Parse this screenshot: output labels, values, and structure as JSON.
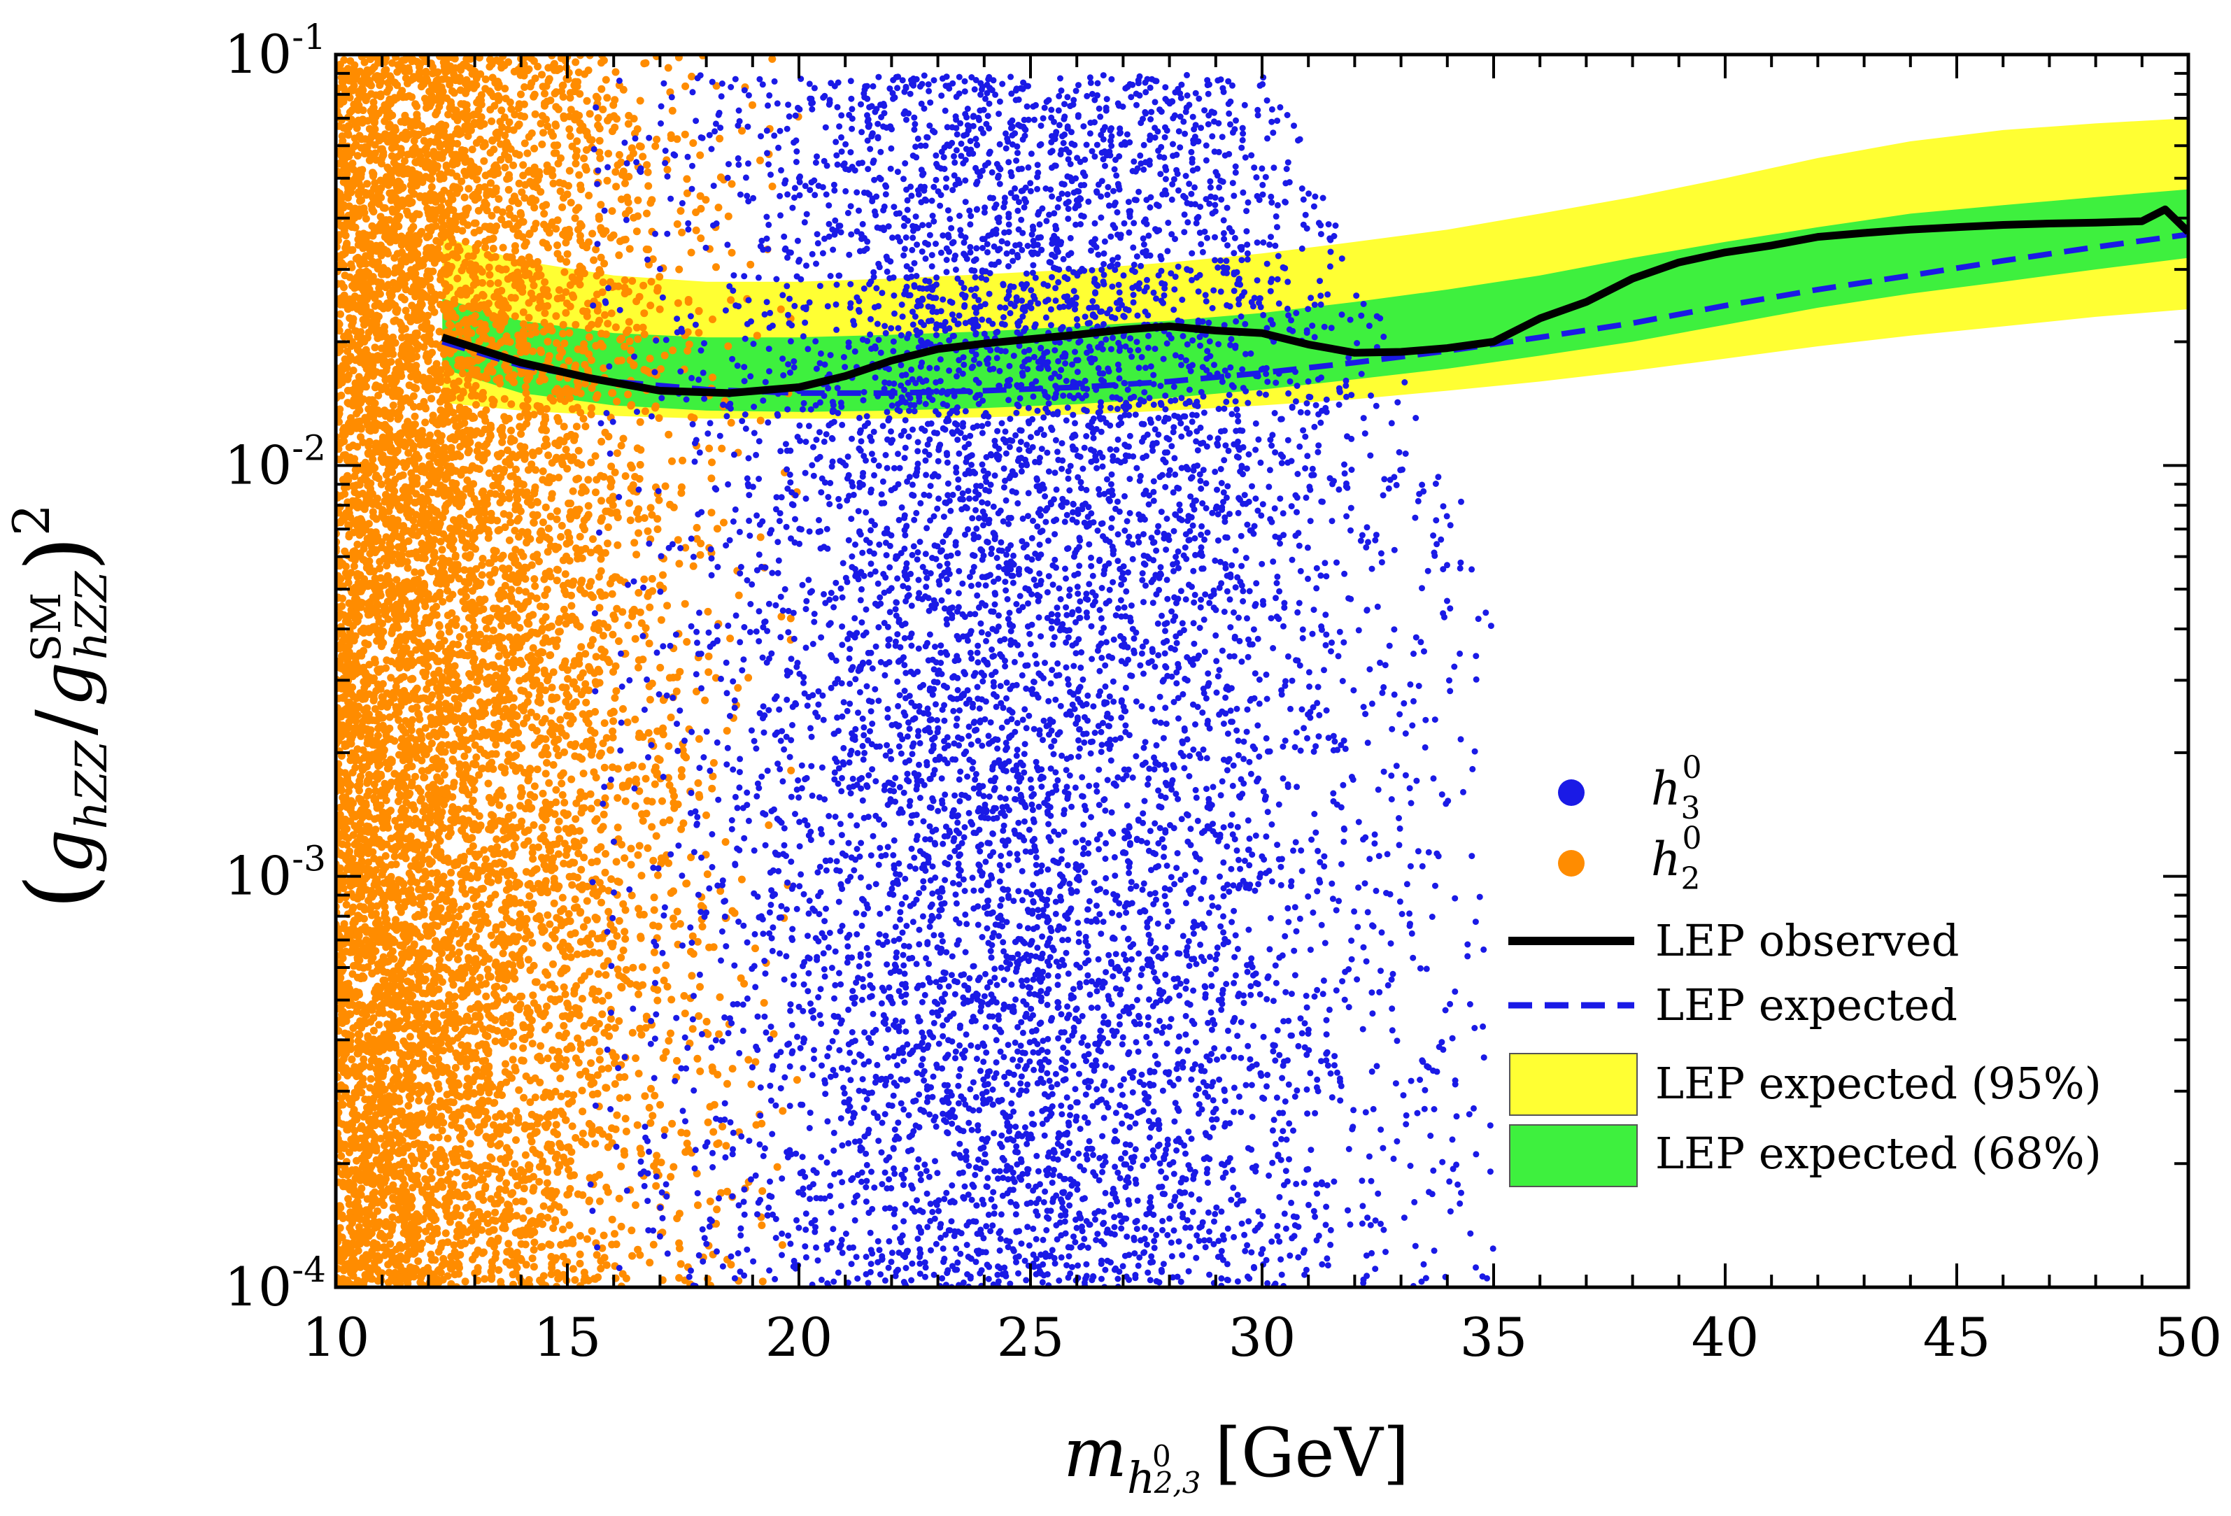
{
  "chart_data": {
    "type": "scatter",
    "title": "",
    "xlabel": {
      "main": "m",
      "sub": "h",
      "subsup": "0",
      "subsub": "2,3",
      "unit": "[GeV]"
    },
    "ylabel": {
      "full": "(g_hZZ / g_hZZ^SM)^2",
      "g": "g",
      "sub": "hZZ",
      "sup": "SM",
      "power": "2",
      "slash": "/"
    },
    "x_range": [
      10,
      50
    ],
    "y_range": [
      0.0001,
      0.1
    ],
    "y_scale": "log",
    "x_ticks": [
      {
        "value": 10,
        "label": "10"
      },
      {
        "value": 15,
        "label": "15"
      },
      {
        "value": 20,
        "label": "20"
      },
      {
        "value": 25,
        "label": "25"
      },
      {
        "value": 30,
        "label": "30"
      },
      {
        "value": 35,
        "label": "35"
      },
      {
        "value": 40,
        "label": "40"
      },
      {
        "value": 45,
        "label": "45"
      },
      {
        "value": 50,
        "label": "50"
      }
    ],
    "y_ticks": [
      {
        "value": 0.0001,
        "base": "10",
        "exp": "-4"
      },
      {
        "value": 0.001,
        "base": "10",
        "exp": "-3"
      },
      {
        "value": 0.01,
        "base": "10",
        "exp": "-2"
      },
      {
        "value": 0.1,
        "base": "10",
        "exp": "-1"
      }
    ],
    "series": [
      {
        "name": "h3^0",
        "label_base": "h",
        "label_sub": "3",
        "label_sup": "0",
        "kind": "scatter",
        "color": "#1a1ae6",
        "description_of_distribution": "mass 16-34 GeV, coupling 1e-4 to 0.09",
        "n_points_rendered": 8000,
        "x_center": 25,
        "x_spread": 4.0,
        "x_min": 15.5,
        "x_max": 35
      },
      {
        "name": "h2^0",
        "label_base": "h",
        "label_sub": "2",
        "label_sup": "0",
        "kind": "scatter",
        "color": "#ff8c00",
        "n_points_rendered": 9000,
        "x_min": 10,
        "x_max": 20
      },
      {
        "name": "LEP observed",
        "kind": "line",
        "color": "#000000",
        "x": [
          12.3,
          14,
          15.5,
          17,
          18.5,
          20,
          21,
          22,
          23,
          24,
          25,
          26,
          27,
          28,
          29,
          30,
          31,
          32,
          33,
          34,
          35,
          36,
          37,
          38,
          39,
          40,
          41,
          42,
          43,
          44,
          45,
          46,
          47,
          48,
          49,
          49.5,
          50
        ],
        "y": [
          0.0205,
          0.0178,
          0.0163,
          0.0152,
          0.015,
          0.0155,
          0.0165,
          0.018,
          0.0192,
          0.0198,
          0.0203,
          0.0208,
          0.0214,
          0.0218,
          0.0213,
          0.021,
          0.0197,
          0.0188,
          0.0189,
          0.0193,
          0.02,
          0.0228,
          0.025,
          0.0285,
          0.0312,
          0.033,
          0.0343,
          0.036,
          0.0368,
          0.0375,
          0.038,
          0.0385,
          0.0388,
          0.039,
          0.0393,
          0.042,
          0.037
        ]
      },
      {
        "name": "LEP expected",
        "kind": "dashed-line",
        "color": "#1a1ae6",
        "x": [
          12.3,
          14,
          16,
          18,
          20,
          22,
          24,
          26,
          28,
          30,
          32,
          34,
          36,
          38,
          40,
          42,
          44,
          46,
          48,
          50
        ],
        "y": [
          0.02,
          0.0175,
          0.016,
          0.0153,
          0.015,
          0.015,
          0.0152,
          0.0155,
          0.016,
          0.0168,
          0.0178,
          0.019,
          0.0205,
          0.0222,
          0.0245,
          0.0268,
          0.029,
          0.0315,
          0.034,
          0.0365
        ]
      },
      {
        "name": "LEP expected (95%)",
        "kind": "band",
        "color": "#ffff33",
        "x": [
          12.3,
          14,
          16,
          18,
          20,
          22,
          24,
          26,
          28,
          30,
          32,
          34,
          36,
          38,
          40,
          42,
          44,
          46,
          48,
          50
        ],
        "lo": [
          0.0142,
          0.0136,
          0.0132,
          0.013,
          0.013,
          0.013,
          0.0131,
          0.0133,
          0.0136,
          0.014,
          0.0145,
          0.0152,
          0.016,
          0.017,
          0.0182,
          0.0195,
          0.0207,
          0.0218,
          0.023,
          0.024
        ],
        "hi": [
          0.036,
          0.0315,
          0.029,
          0.028,
          0.028,
          0.0285,
          0.0292,
          0.03,
          0.0312,
          0.0328,
          0.035,
          0.0375,
          0.041,
          0.045,
          0.05,
          0.056,
          0.0615,
          0.0655,
          0.068,
          0.07
        ]
      },
      {
        "name": "LEP expected (68%)",
        "kind": "band",
        "color": "#3ef03e",
        "x": [
          12.3,
          14,
          16,
          18,
          20,
          22,
          24,
          26,
          28,
          30,
          32,
          34,
          36,
          38,
          40,
          42,
          44,
          46,
          48,
          50
        ],
        "lo": [
          0.0172,
          0.015,
          0.014,
          0.0136,
          0.0135,
          0.0136,
          0.0138,
          0.0141,
          0.0146,
          0.0153,
          0.0162,
          0.0172,
          0.0185,
          0.02,
          0.022,
          0.0242,
          0.0262,
          0.028,
          0.03,
          0.032
        ],
        "hi": [
          0.0255,
          0.0225,
          0.021,
          0.0205,
          0.0205,
          0.0208,
          0.0212,
          0.0218,
          0.0225,
          0.0235,
          0.025,
          0.0268,
          0.029,
          0.032,
          0.035,
          0.038,
          0.041,
          0.043,
          0.045,
          0.047
        ]
      }
    ],
    "legend": {
      "position": "lower-right",
      "items": [
        {
          "key": "h3",
          "base": "h",
          "sub": "3",
          "sup": "0"
        },
        {
          "key": "h2",
          "base": "h",
          "sub": "2",
          "sup": "0"
        },
        {
          "key": "obs",
          "label": "LEP observed"
        },
        {
          "key": "exp",
          "label": "LEP expected"
        },
        {
          "key": "e95",
          "label": "LEP expected (95%)"
        },
        {
          "key": "e68",
          "label": "LEP expected (68%)"
        }
      ]
    }
  }
}
